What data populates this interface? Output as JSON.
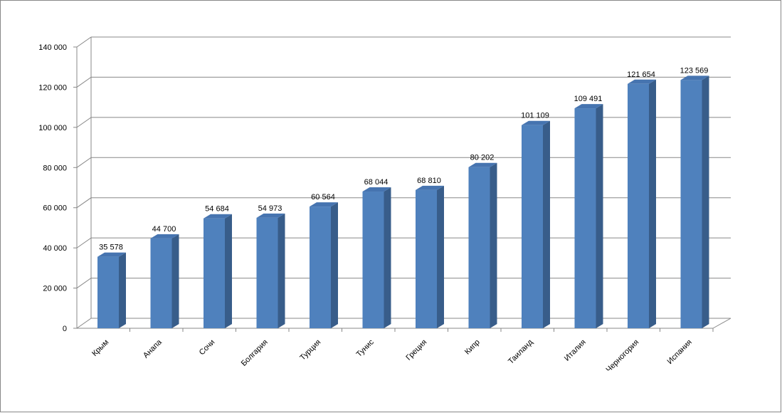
{
  "chart_data": {
    "type": "bar3d",
    "categories": [
      "Крым",
      "Анапа",
      "Сочи",
      "Болгария",
      "Турция",
      "Тунис",
      "Греция",
      "Кипр",
      "Таиланд",
      "Италия",
      "Черногория",
      "Испания"
    ],
    "values": [
      35578,
      44700,
      54684,
      54973,
      60564,
      68044,
      68810,
      80202,
      101109,
      109491,
      121654,
      123569
    ],
    "value_labels": [
      "35 578",
      "44 700",
      "54 684",
      "54 973",
      "60 564",
      "68 044",
      "68 810",
      "80 202",
      "101 109",
      "109 491",
      "121 654",
      "123 569"
    ],
    "color": "#4f81bd",
    "ylim": [
      0,
      140000
    ],
    "yticks": [
      0,
      {
        "value": 20000,
        "label": "20 000"
      },
      {
        "value": 40000,
        "label": "40 000"
      },
      {
        "value": 60000,
        "label": "60 000"
      },
      {
        "value": 80000,
        "label": "80 000"
      },
      {
        "value": 100000,
        "label": "100 000"
      },
      {
        "value": 120000,
        "label": "120 000"
      },
      {
        "value": 140000,
        "label": "140 000"
      }
    ],
    "grid": true
  }
}
